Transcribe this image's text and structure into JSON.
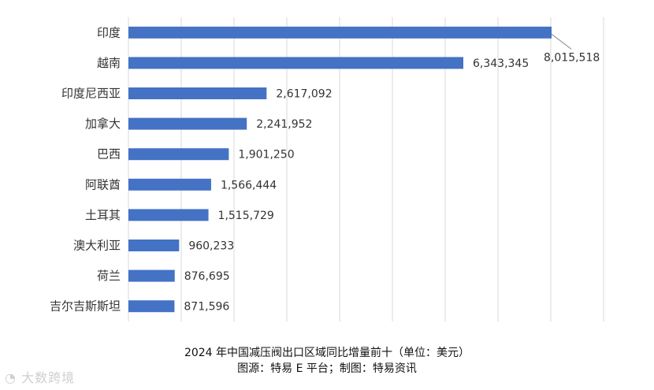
{
  "chart_data": {
    "type": "bar",
    "orientation": "horizontal",
    "categories": [
      "印度",
      "越南",
      "印度尼西亚",
      "加拿大",
      "巴西",
      "阿联酋",
      "土耳其",
      "澳大利亚",
      "荷兰",
      "吉尔吉斯斯坦"
    ],
    "values": [
      8015518,
      6343345,
      2617092,
      2241952,
      1901250,
      1566444,
      1515729,
      960233,
      876695,
      871596
    ],
    "value_labels": [
      "8,015,518",
      "6,343,345",
      "2,617,092",
      "2,241,952",
      "1,901,250",
      "1,566,444",
      "1,515,729",
      "960,233",
      "876,695",
      "871,596"
    ],
    "xlim": [
      0,
      9000000
    ],
    "grid_step": 1000000,
    "grid": true,
    "bar_color": "#4472c4",
    "title": "2024 年中国减压阀出口区域同比增量前十（单位：美元）",
    "source": "图源：特易 E 平台；制图：特易资讯"
  },
  "watermark": "大数跨境"
}
